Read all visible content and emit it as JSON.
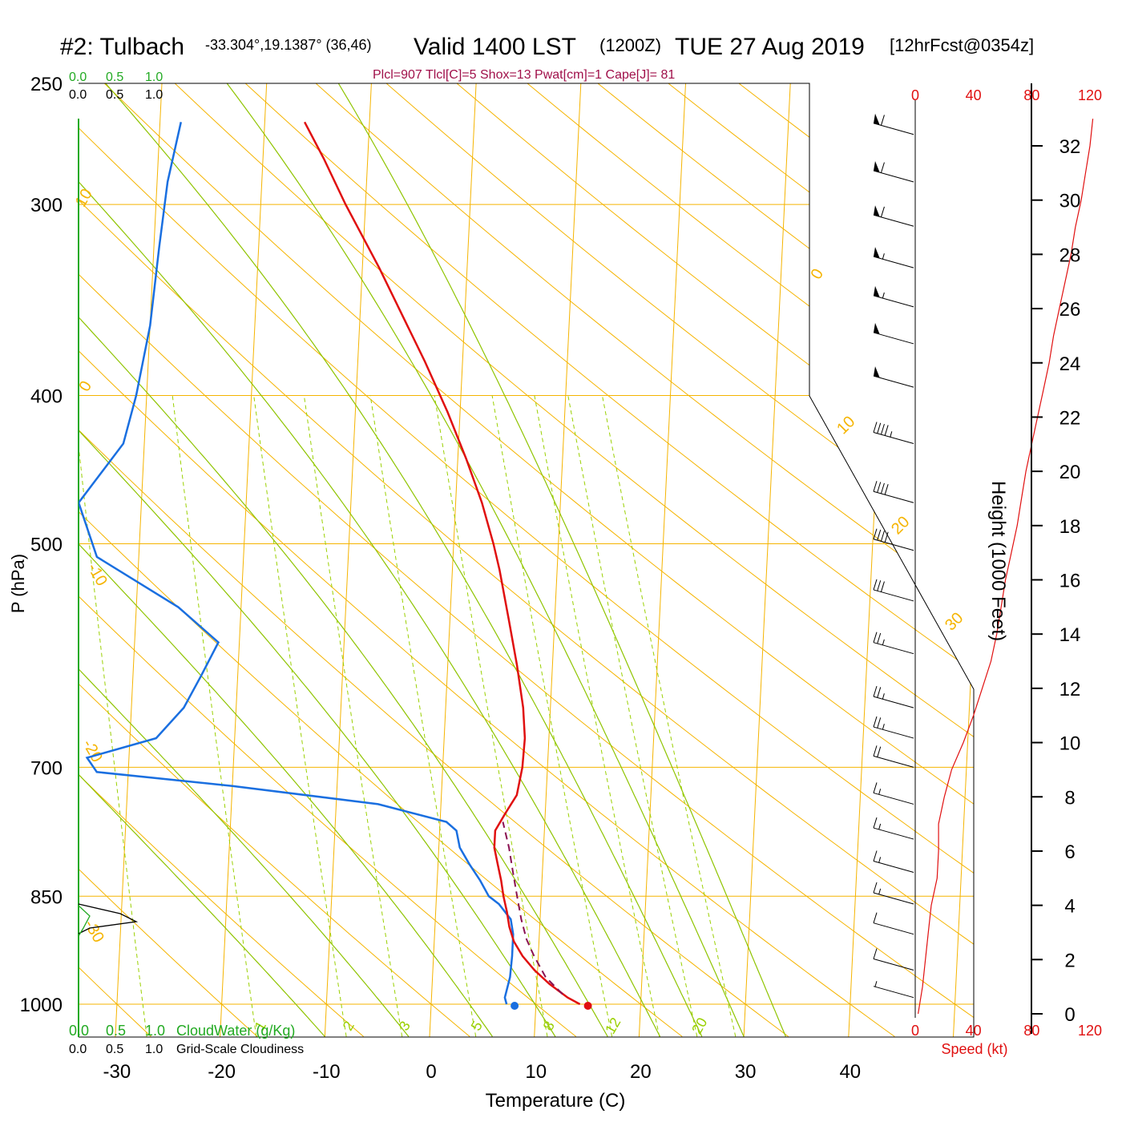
{
  "title": {
    "station": "#2: Tulbach",
    "coords": "-33.304°,19.1387° (36,46)",
    "valid": "Valid 1400 LST",
    "utc": "(1200Z)",
    "date": "TUE 27 Aug 2019",
    "fcst": "[12hrFcst@0354z]"
  },
  "indices_line": "Plcl=907 Tlcl[C]=5 Shox=13 Pwat[cm]=1 Cape[J]= 81",
  "colors": {
    "isobar": "#f5b400",
    "isotherm": "#f5b400",
    "dry_adiabat": "#f5b400",
    "moist_adiabat": "#8fc400",
    "mixing_ratio": "#9ad000",
    "temperature": "#e01010",
    "dewpoint": "#1a6fe0",
    "parcel": "#8a1050",
    "cloud_water": "#22aa22",
    "speed": "#e01010",
    "indices": "#a0104a"
  },
  "cloud_scale": {
    "top_green": [
      "0.0",
      "0.5",
      "1.0"
    ],
    "top_black": [
      "0.0",
      "0.5",
      "1.0"
    ],
    "bottom_green": [
      "0.0",
      "0.5",
      "1.0"
    ],
    "bottom_green_label": "CloudWater (g/Kg)",
    "bottom_black": [
      "0.0",
      "0.5",
      "1.0"
    ],
    "bottom_black_label": "Grid-Scale Cloudiness"
  },
  "chart_data": {
    "type": "skew-t",
    "xlabel": "Temperature (C)",
    "ylabel": "P (hPa)",
    "y2label": "Height (1000 Feet)",
    "x_ticks": [
      -30,
      -20,
      -10,
      0,
      10,
      20,
      30,
      40
    ],
    "p_ticks": [
      250,
      300,
      400,
      500,
      700,
      850,
      1000
    ],
    "p_range": [
      250,
      1000
    ],
    "height_ticks": [
      0,
      2,
      4,
      6,
      8,
      10,
      12,
      14,
      16,
      18,
      20,
      22,
      24,
      26,
      28,
      30,
      32
    ],
    "speed_ticks": [
      "0",
      "40",
      "80",
      "120"
    ],
    "speed_label": "Speed (kt)",
    "isotherm_labels": [
      "10",
      "0",
      "-10",
      "-20",
      "-30",
      "0",
      "10",
      "20",
      "30"
    ],
    "mixing_ratio_labels": [
      "1",
      "2",
      "3",
      "5",
      "8",
      "12",
      "20"
    ],
    "temperature": [
      [
        1000,
        14.2
      ],
      [
        990,
        13.0
      ],
      [
        970,
        11.2
      ],
      [
        950,
        9.7
      ],
      [
        930,
        8.5
      ],
      [
        910,
        7.6
      ],
      [
        890,
        7.1
      ],
      [
        870,
        6.8
      ],
      [
        850,
        6.4
      ],
      [
        830,
        6.1
      ],
      [
        810,
        5.7
      ],
      [
        790,
        5.3
      ],
      [
        770,
        5.3
      ],
      [
        750,
        6.2
      ],
      [
        730,
        7.2
      ],
      [
        700,
        7.6
      ],
      [
        670,
        7.7
      ],
      [
        640,
        7.4
      ],
      [
        600,
        6.6
      ],
      [
        560,
        5.6
      ],
      [
        520,
        4.5
      ],
      [
        500,
        3.8
      ],
      [
        470,
        2.5
      ],
      [
        440,
        0.8
      ],
      [
        410,
        -1.2
      ],
      [
        380,
        -3.6
      ],
      [
        350,
        -6.4
      ],
      [
        330,
        -8.4
      ],
      [
        300,
        -11.9
      ],
      [
        280,
        -14.2
      ],
      [
        265,
        -16.2
      ]
    ],
    "dewpoint": [
      [
        1000,
        7.2
      ],
      [
        990,
        7.0
      ],
      [
        960,
        7.4
      ],
      [
        930,
        7.5
      ],
      [
        900,
        7.5
      ],
      [
        880,
        7.2
      ],
      [
        860,
        6.0
      ],
      [
        850,
        5.0
      ],
      [
        830,
        4.1
      ],
      [
        810,
        3.0
      ],
      [
        790,
        2.0
      ],
      [
        770,
        1.6
      ],
      [
        760,
        0.6
      ],
      [
        740,
        -6.0
      ],
      [
        720,
        -20.0
      ],
      [
        705,
        -33.0
      ],
      [
        690,
        -34.0
      ],
      [
        670,
        -27.5
      ],
      [
        640,
        -25.0
      ],
      [
        610,
        -23.5
      ],
      [
        580,
        -22.0
      ],
      [
        550,
        -26.0
      ],
      [
        510,
        -34.0
      ],
      [
        470,
        -36.0
      ],
      [
        430,
        -32.0
      ],
      [
        400,
        -31.0
      ],
      [
        360,
        -30.0
      ],
      [
        320,
        -29.5
      ],
      [
        290,
        -29.0
      ],
      [
        265,
        -28.0
      ]
    ],
    "parcel": [
      [
        985,
        12.5
      ],
      [
        960,
        10.8
      ],
      [
        930,
        9.6
      ],
      [
        907,
        8.8
      ],
      [
        880,
        8.2
      ],
      [
        850,
        7.7
      ],
      [
        820,
        7.2
      ],
      [
        790,
        6.7
      ],
      [
        760,
        6.0
      ]
    ],
    "surface": {
      "temperature": 14.2,
      "dewpoint": 7.2
    },
    "wind_speed_profile_kt": [
      [
        0,
        2
      ],
      [
        1,
        5
      ],
      [
        2,
        7
      ],
      [
        3,
        9
      ],
      [
        4,
        11
      ],
      [
        5,
        15
      ],
      [
        6,
        16
      ],
      [
        7,
        16
      ],
      [
        8,
        20
      ],
      [
        9,
        25
      ],
      [
        10,
        33
      ],
      [
        11,
        40
      ],
      [
        12,
        46
      ],
      [
        13,
        52
      ],
      [
        14,
        56
      ],
      [
        15,
        59
      ],
      [
        16,
        62
      ],
      [
        17,
        66
      ],
      [
        18,
        70
      ],
      [
        19,
        73
      ],
      [
        20,
        76
      ],
      [
        21,
        80
      ],
      [
        22,
        84
      ],
      [
        23,
        88
      ],
      [
        24,
        92
      ],
      [
        25,
        95
      ],
      [
        26,
        99
      ],
      [
        27,
        103
      ],
      [
        28,
        107
      ],
      [
        29,
        110
      ],
      [
        30,
        114
      ],
      [
        31,
        117
      ],
      [
        32,
        120
      ],
      [
        33,
        122
      ]
    ],
    "wind_barb_levels": [
      {
        "p": 270,
        "speed": 60
      },
      {
        "p": 290,
        "speed": 60
      },
      {
        "p": 310,
        "speed": 60
      },
      {
        "p": 330,
        "speed": 55
      },
      {
        "p": 350,
        "speed": 55
      },
      {
        "p": 370,
        "speed": 50
      },
      {
        "p": 395,
        "speed": 50
      },
      {
        "p": 430,
        "speed": 45
      },
      {
        "p": 470,
        "speed": 40
      },
      {
        "p": 505,
        "speed": 40
      },
      {
        "p": 545,
        "speed": 30
      },
      {
        "p": 590,
        "speed": 25
      },
      {
        "p": 640,
        "speed": 25
      },
      {
        "p": 670,
        "speed": 25
      },
      {
        "p": 700,
        "speed": 20
      },
      {
        "p": 740,
        "speed": 15
      },
      {
        "p": 780,
        "speed": 15
      },
      {
        "p": 820,
        "speed": 15
      },
      {
        "p": 860,
        "speed": 15
      },
      {
        "p": 900,
        "speed": 10
      },
      {
        "p": 950,
        "speed": 10
      },
      {
        "p": 990,
        "speed": 5
      }
    ]
  }
}
